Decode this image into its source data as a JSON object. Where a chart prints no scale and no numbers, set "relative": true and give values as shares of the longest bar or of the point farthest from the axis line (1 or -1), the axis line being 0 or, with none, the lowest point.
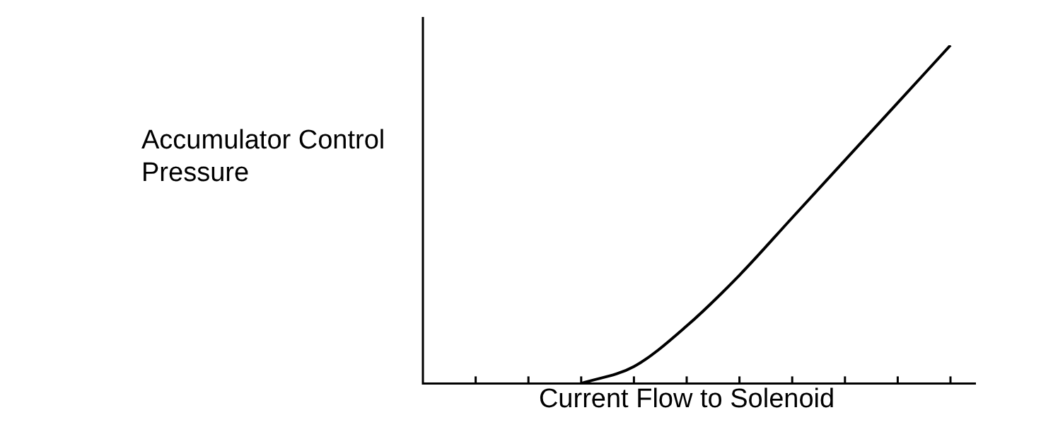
{
  "chart_data": {
    "type": "line",
    "relative": true,
    "tick_labels": false,
    "legend": false,
    "grid": false,
    "marker": "none",
    "xlabel": "Current Flow to Solenoid",
    "ylabel": "Accumulator Control Pressure",
    "categories": [
      null,
      null,
      null,
      null,
      null,
      null,
      null,
      null,
      null,
      null,
      null
    ],
    "series": [
      {
        "color": "#000000",
        "values": [
          null,
          null,
          null,
          0,
          0.05,
          0.17,
          0.32,
          0.49,
          0.66,
          0.83,
          1
        ]
      }
    ]
  }
}
